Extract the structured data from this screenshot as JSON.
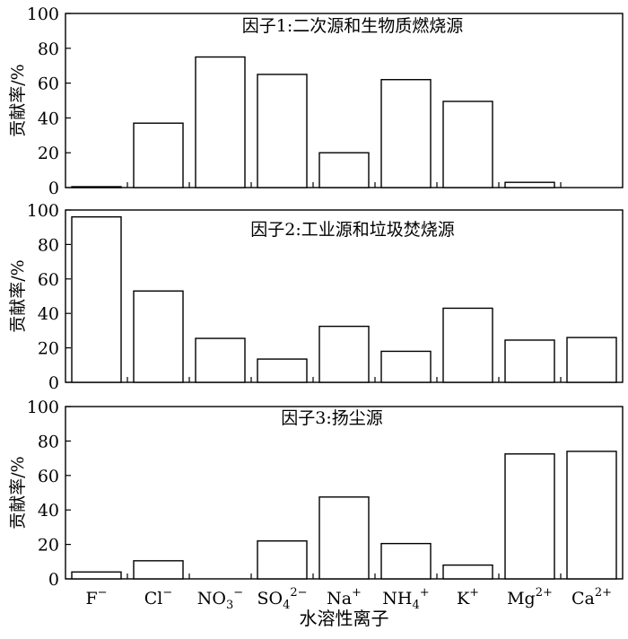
{
  "chart_data": [
    {
      "type": "bar",
      "title": "因子1:二次源和生物质燃烧源",
      "ylabel": "贡献率/%",
      "ylim": [
        0,
        100
      ],
      "yticks": [
        0,
        20,
        40,
        60,
        80,
        100
      ],
      "categories": [
        "F",
        "Cl",
        "NO3",
        "SO4",
        "Na",
        "NH4",
        "K",
        "Mg",
        "Ca"
      ],
      "values": [
        0.5,
        37,
        75,
        65,
        20,
        62,
        49.5,
        3,
        0
      ]
    },
    {
      "type": "bar",
      "title": "因子2:工业源和垃圾焚烧源",
      "ylabel": "贡献率/%",
      "ylim": [
        0,
        100
      ],
      "yticks": [
        0,
        20,
        40,
        60,
        80,
        100
      ],
      "categories": [
        "F",
        "Cl",
        "NO3",
        "SO4",
        "Na",
        "NH4",
        "K",
        "Mg",
        "Ca"
      ],
      "values": [
        96,
        53,
        25.5,
        13.5,
        32.5,
        18,
        43,
        24.5,
        26
      ]
    },
    {
      "type": "bar",
      "title": "因子3:扬尘源",
      "ylabel": "贡献率/%",
      "ylim": [
        0,
        100
      ],
      "yticks": [
        0,
        20,
        40,
        60,
        80,
        100
      ],
      "categories": [
        "F",
        "Cl",
        "NO3",
        "SO4",
        "Na",
        "NH4",
        "K",
        "Mg",
        "Ca"
      ],
      "values": [
        4,
        10.5,
        0,
        22,
        47.5,
        20.5,
        8,
        72.5,
        74
      ]
    }
  ],
  "x_tick_labels": [
    {
      "base": "F",
      "sub": "",
      "sup": "−"
    },
    {
      "base": "Cl",
      "sub": "",
      "sup": "−"
    },
    {
      "base": "NO",
      "sub": "3",
      "sup": "−"
    },
    {
      "base": "SO",
      "sub": "4",
      "sup": "2−"
    },
    {
      "base": "Na",
      "sub": "",
      "sup": "+"
    },
    {
      "base": "NH",
      "sub": "4",
      "sup": "+"
    },
    {
      "base": "K",
      "sub": "",
      "sup": "+"
    },
    {
      "base": "Mg",
      "sub": "",
      "sup": "2+"
    },
    {
      "base": "Ca",
      "sub": "",
      "sup": "2+"
    }
  ],
  "xlabel": "水溶性离子",
  "colors": {
    "bar_fill": "#ffffff",
    "stroke": "#000000"
  }
}
